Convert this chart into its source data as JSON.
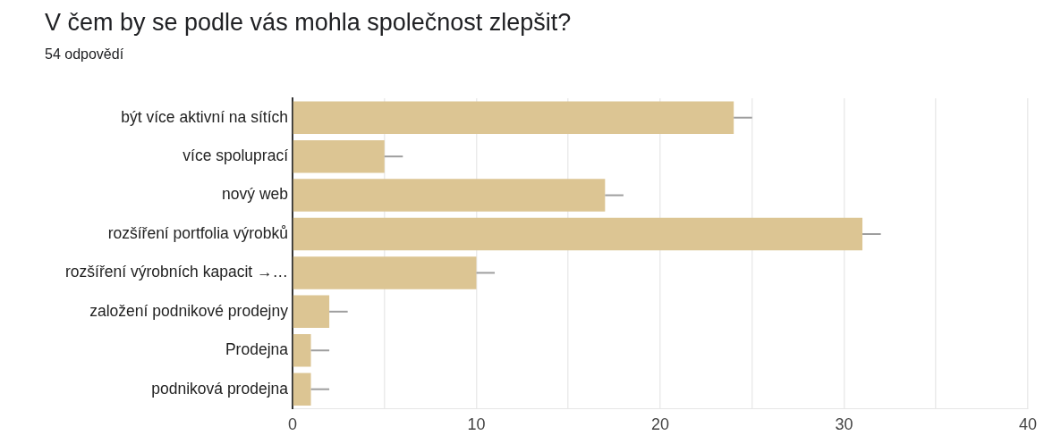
{
  "chart_data": {
    "type": "bar",
    "orientation": "horizontal",
    "title": "V čem by se podle vás mohla společnost zlepšit?",
    "subtitle": "54 odpovědí",
    "categories": [
      "být více aktivní na sítích",
      "více spoluprací",
      "nový web",
      "rozšíření portfolia výrobků",
      "rozšíření výrobních kapacit →…",
      "založení podnikové prodejny",
      "Prodejna",
      "podniková prodejna"
    ],
    "values": [
      24,
      5,
      17,
      31,
      10,
      2,
      1,
      1
    ],
    "color": "#dcc593",
    "errors": [
      [
        24,
        25
      ],
      [
        5,
        6
      ],
      [
        17,
        18
      ],
      [
        31,
        32
      ],
      [
        10,
        11
      ],
      [
        2,
        3
      ],
      [
        1,
        2
      ],
      [
        1,
        2
      ]
    ],
    "xlim": [
      0,
      40
    ],
    "xticks": [
      0,
      {
        "value": 5,
        "label": null
      },
      10,
      {
        "value": 15,
        "label": null
      },
      20,
      {
        "value": 25,
        "label": null
      },
      30,
      {
        "value": 35,
        "label": null
      },
      40
    ],
    "grid": "x",
    "legend": false
  }
}
